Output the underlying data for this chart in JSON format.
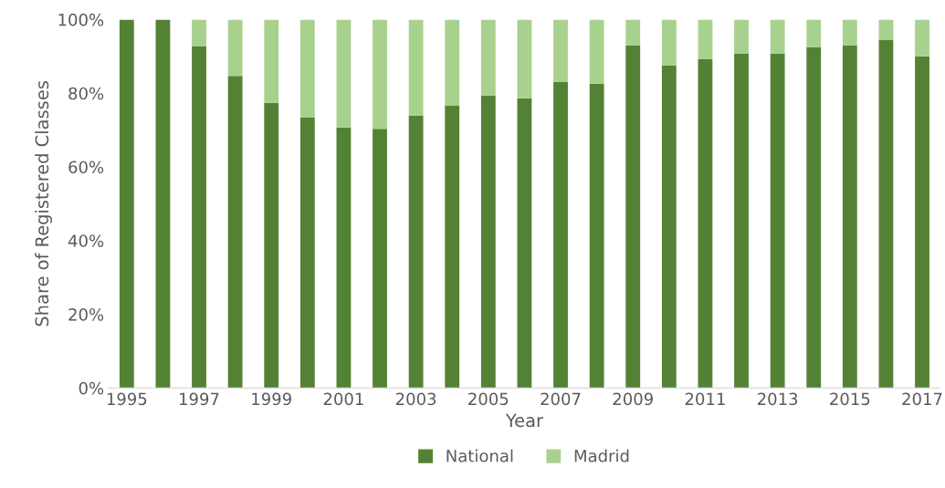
{
  "chart_data": {
    "type": "bar",
    "stacked": true,
    "xlabel": "Year",
    "ylabel": "Share of Registered Classes",
    "categories": [
      "1995",
      null,
      "1997",
      null,
      "1999",
      null,
      "2001",
      null,
      "2003",
      null,
      "2005",
      null,
      "2007",
      null,
      "2009",
      null,
      "2011",
      null,
      "2013",
      null,
      "2015",
      null,
      "2017"
    ],
    "series": [
      {
        "name": "National",
        "color": "#548235",
        "values": [
          100,
          100,
          92.7,
          84.7,
          77.4,
          73.5,
          70.7,
          70.3,
          74,
          76.7,
          79.3,
          78.6,
          83,
          82.6,
          92.9,
          87.5,
          89.2,
          90.7,
          90.7,
          92.4,
          92.9,
          94.4,
          90
        ]
      },
      {
        "name": "Madrid",
        "color": "#a9d18e",
        "values": [
          0,
          0,
          7.3,
          15.3,
          22.6,
          26.5,
          29.3,
          29.7,
          26,
          23.3,
          20.7,
          21.4,
          17,
          17.4,
          7.1,
          12.5,
          10.8,
          9.3,
          9.3,
          7.6,
          7.1,
          5.6,
          10
        ]
      }
    ],
    "ylim": [
      0,
      100
    ],
    "yticks": [
      {
        "value": 0,
        "label": "0%"
      },
      {
        "value": 20,
        "label": "20%"
      },
      {
        "value": 40,
        "label": "40%"
      },
      {
        "value": 60,
        "label": "60%"
      },
      {
        "value": 80,
        "label": "80%"
      },
      {
        "value": 100,
        "label": "100%"
      }
    ],
    "grid": false,
    "legend": "bottom"
  }
}
